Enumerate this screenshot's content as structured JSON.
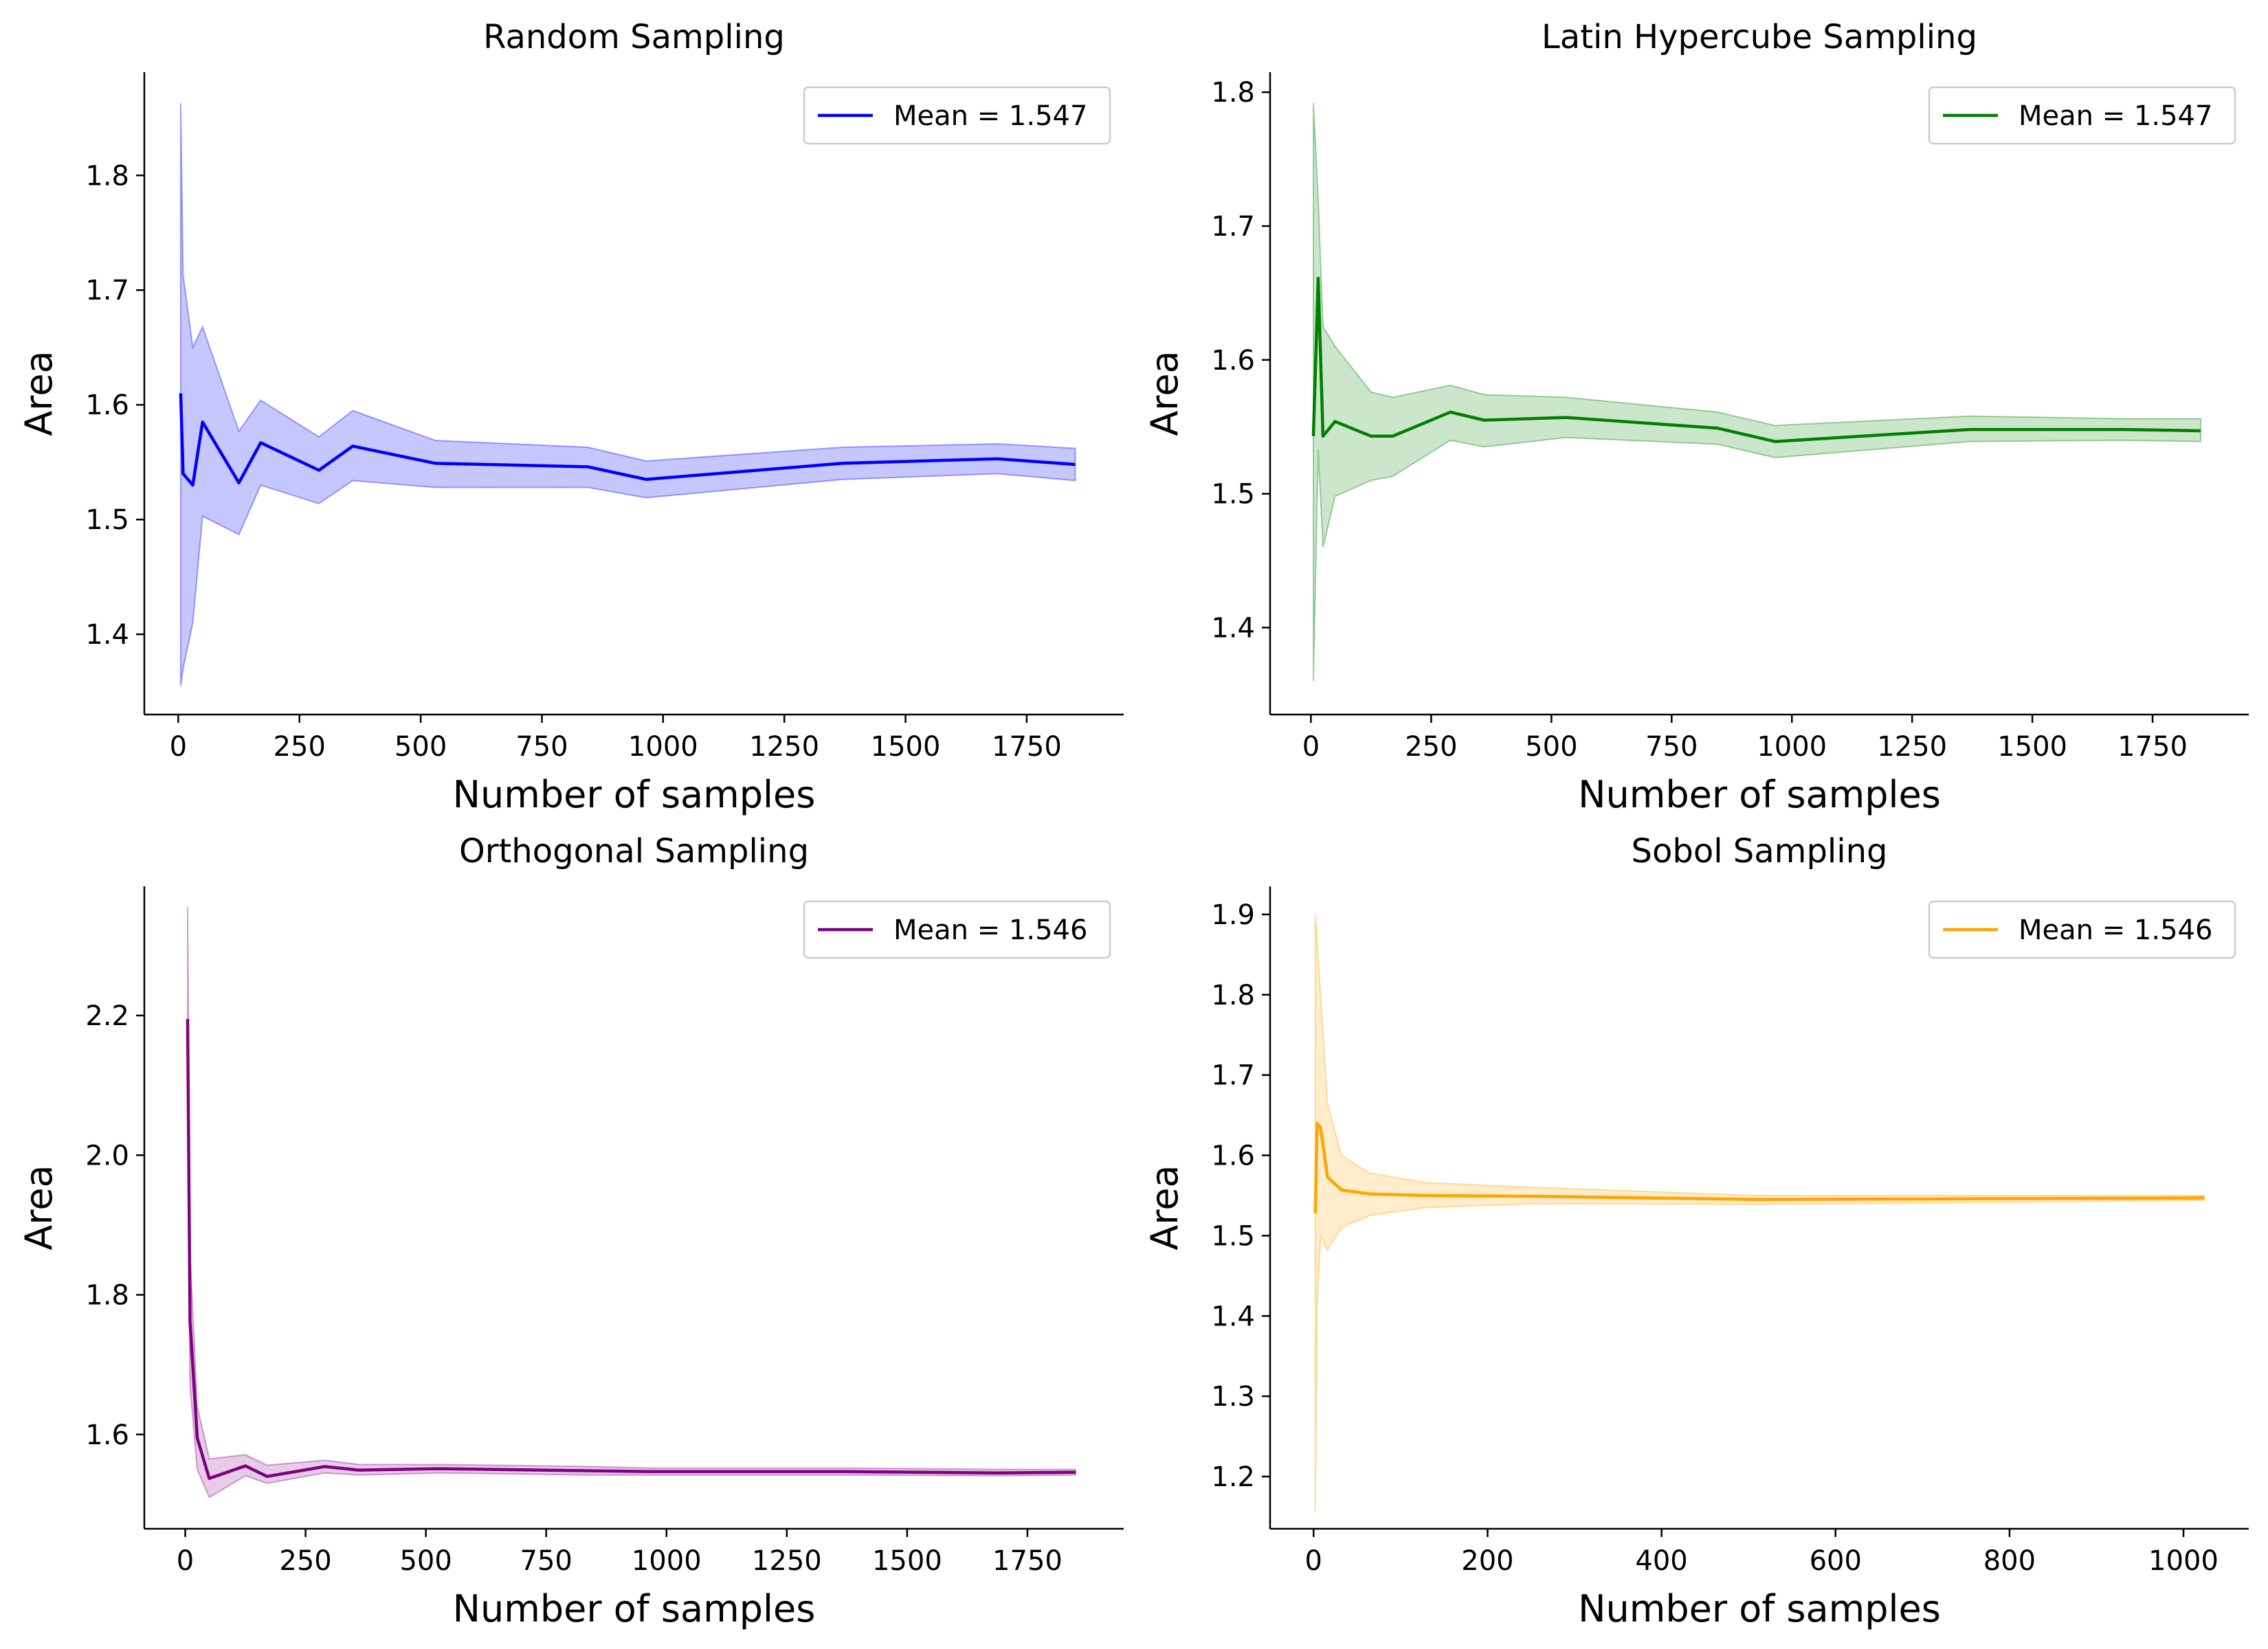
{
  "colors": {
    "random": "#0000ff",
    "latin": "#008000",
    "orthogonal": "#800080",
    "sobol": "#ffa500"
  },
  "chart_data": [
    {
      "type": "line",
      "title": "Random Sampling",
      "xlabel": "Number of samples",
      "ylabel": "Area",
      "xlim": [
        -70,
        1950
      ],
      "ylim": [
        1.33,
        1.89
      ],
      "xticks": [
        0,
        250,
        500,
        750,
        1000,
        1250,
        1500,
        1750
      ],
      "yticks": [
        1.4,
        1.5,
        1.6,
        1.7,
        1.8
      ],
      "grid": false,
      "legend_position": "top-right",
      "color_key": "random",
      "band_opacity": 0.22,
      "series": [
        {
          "name": "Mean = 1.547",
          "x": [
            5,
            10,
            30,
            50,
            125,
            170,
            290,
            360,
            530,
            845,
            965,
            1370,
            1690,
            1850
          ],
          "y": [
            1.61,
            1.54,
            1.53,
            1.585,
            1.532,
            1.567,
            1.543,
            1.564,
            1.549,
            1.546,
            1.535,
            1.549,
            1.553,
            1.548
          ],
          "lower": [
            1.355,
            1.37,
            1.41,
            1.503,
            1.487,
            1.53,
            1.514,
            1.534,
            1.528,
            1.528,
            1.519,
            1.535,
            1.54,
            1.534
          ],
          "upper": [
            1.863,
            1.713,
            1.65,
            1.668,
            1.577,
            1.604,
            1.572,
            1.595,
            1.569,
            1.563,
            1.551,
            1.563,
            1.566,
            1.562
          ]
        }
      ]
    },
    {
      "type": "line",
      "title": "Latin Hypercube Sampling",
      "xlabel": "Number of samples",
      "ylabel": "Area",
      "xlim": [
        -85,
        1950
      ],
      "ylim": [
        1.335,
        1.815
      ],
      "xticks": [
        0,
        250,
        500,
        750,
        1000,
        1250,
        1500,
        1750
      ],
      "yticks": [
        1.4,
        1.5,
        1.6,
        1.7,
        1.8
      ],
      "grid": false,
      "legend_position": "top-right",
      "color_key": "latin",
      "band_opacity": 0.2,
      "series": [
        {
          "name": "Mean = 1.547",
          "x": [
            5,
            15,
            25,
            50,
            125,
            170,
            290,
            360,
            530,
            845,
            965,
            1370,
            1690,
            1850
          ],
          "y": [
            1.543,
            1.661,
            1.543,
            1.554,
            1.543,
            1.543,
            1.561,
            1.555,
            1.557,
            1.549,
            1.539,
            1.548,
            1.548,
            1.547
          ],
          "lower": [
            1.36,
            1.533,
            1.46,
            1.498,
            1.51,
            1.513,
            1.54,
            1.535,
            1.542,
            1.537,
            1.527,
            1.539,
            1.54,
            1.539
          ],
          "upper": [
            1.792,
            1.72,
            1.625,
            1.61,
            1.576,
            1.572,
            1.581,
            1.574,
            1.572,
            1.561,
            1.551,
            1.558,
            1.556,
            1.556
          ]
        }
      ]
    },
    {
      "type": "line",
      "title": "Orthogonal Sampling",
      "xlabel": "Number of samples",
      "ylabel": "Area",
      "xlim": [
        -85,
        1950
      ],
      "ylim": [
        1.465,
        2.385
      ],
      "xticks": [
        0,
        250,
        500,
        750,
        1000,
        1250,
        1500,
        1750
      ],
      "yticks": [
        1.6,
        1.8,
        2.0,
        2.2
      ],
      "grid": false,
      "legend_position": "top-right",
      "color_key": "orthogonal",
      "band_opacity": 0.2,
      "series": [
        {
          "name": "Mean = 1.546",
          "x": [
            5,
            10,
            25,
            50,
            125,
            170,
            290,
            360,
            530,
            845,
            965,
            1370,
            1690,
            1850
          ],
          "y": [
            2.195,
            1.762,
            1.595,
            1.537,
            1.555,
            1.54,
            1.554,
            1.549,
            1.551,
            1.548,
            1.547,
            1.547,
            1.545,
            1.546
          ],
          "lower": [
            2.04,
            1.67,
            1.55,
            1.51,
            1.541,
            1.53,
            1.545,
            1.542,
            1.545,
            1.542,
            1.542,
            1.542,
            1.541,
            1.542
          ],
          "upper": [
            2.355,
            1.86,
            1.64,
            1.565,
            1.571,
            1.556,
            1.563,
            1.557,
            1.557,
            1.554,
            1.552,
            1.552,
            1.55,
            1.55
          ]
        }
      ]
    },
    {
      "type": "line",
      "title": "Sobol Sampling",
      "xlabel": "Number of samples",
      "ylabel": "Area",
      "xlim": [
        -50,
        1075
      ],
      "ylim": [
        1.135,
        1.935
      ],
      "xticks": [
        0,
        200,
        400,
        600,
        800,
        1000
      ],
      "yticks": [
        1.2,
        1.3,
        1.4,
        1.5,
        1.6,
        1.7,
        1.8,
        1.9
      ],
      "grid": false,
      "legend_position": "top-right",
      "color_key": "sobol",
      "band_opacity": 0.2,
      "series": [
        {
          "name": "Mean = 1.546",
          "x": [
            2,
            4,
            8,
            16,
            32,
            64,
            128,
            256,
            512,
            1024
          ],
          "y": [
            1.528,
            1.64,
            1.635,
            1.573,
            1.557,
            1.552,
            1.55,
            1.549,
            1.545,
            1.547
          ],
          "lower": [
            1.155,
            1.41,
            1.5,
            1.482,
            1.51,
            1.525,
            1.535,
            1.54,
            1.539,
            1.544
          ],
          "upper": [
            1.9,
            1.87,
            1.8,
            1.665,
            1.6,
            1.578,
            1.566,
            1.56,
            1.55,
            1.55
          ]
        }
      ]
    }
  ]
}
